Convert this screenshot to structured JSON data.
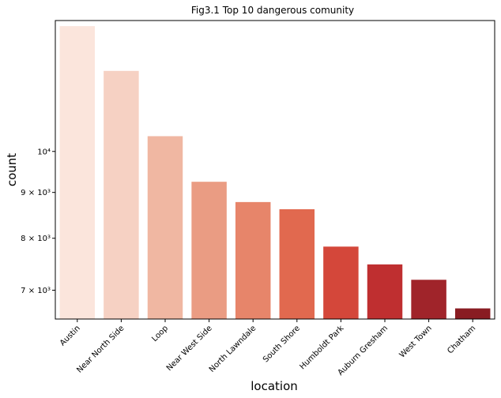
{
  "chart_data": {
    "type": "bar",
    "title": "Fig3.1 Top 10 dangerous comunity",
    "xlabel": "location",
    "ylabel": "count",
    "yscale": "log",
    "ylim": [
      6500,
      14000
    ],
    "categories": [
      "Austin",
      "Near North Side",
      "Loop",
      "Near West Side",
      "North Lawndale",
      "South Shore",
      "Humboldt Park",
      "Auburn Gresham",
      "West Town",
      "Chatham"
    ],
    "values": [
      13800,
      12300,
      10400,
      9250,
      8780,
      8620,
      7830,
      7480,
      7190,
      6680
    ],
    "yticks": [
      {
        "value": 7000,
        "label": "7 × 10³"
      },
      {
        "value": 8000,
        "label": "8 × 10³"
      },
      {
        "value": 9000,
        "label": "9 × 10³"
      },
      {
        "value": 10000,
        "label": "10⁴"
      }
    ],
    "colors": [
      "#fbe5dc",
      "#f6d1c3",
      "#f0b7a2",
      "#ea9c83",
      "#e7856a",
      "#e1694f",
      "#d4473a",
      "#bf2f30",
      "#a0242a",
      "#891c22"
    ],
    "grid": false,
    "legend": "none"
  }
}
